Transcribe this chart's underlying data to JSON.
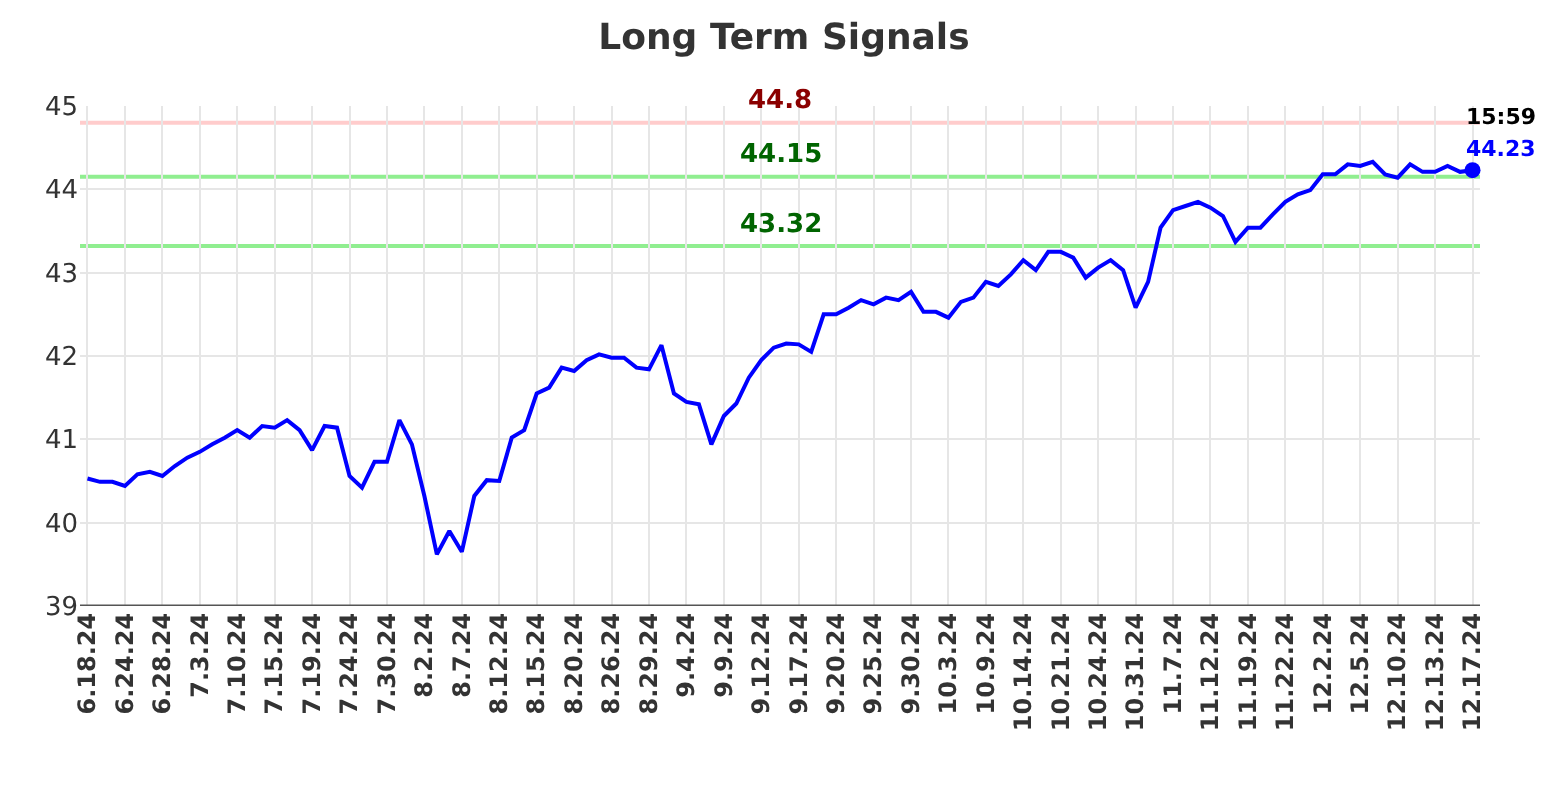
{
  "chart_data": {
    "type": "line",
    "title": "Long Term Signals",
    "categories": [
      "6.18.24",
      null,
      null,
      "6.24.24",
      null,
      null,
      "6.28.24",
      null,
      null,
      "7.3.24",
      null,
      null,
      "7.10.24",
      null,
      null,
      "7.15.24",
      null,
      null,
      "7.19.24",
      null,
      null,
      "7.24.24",
      null,
      null,
      "7.30.24",
      null,
      null,
      "8.2.24",
      null,
      null,
      "8.7.24",
      null,
      null,
      "8.12.24",
      null,
      null,
      "8.15.24",
      null,
      null,
      "8.20.24",
      null,
      null,
      "8.26.24",
      null,
      null,
      "8.29.24",
      null,
      null,
      "9.4.24",
      null,
      null,
      "9.9.24",
      null,
      null,
      "9.12.24",
      null,
      null,
      "9.17.24",
      null,
      null,
      "9.20.24",
      null,
      null,
      "9.25.24",
      null,
      null,
      "9.30.24",
      null,
      null,
      "10.3.24",
      null,
      null,
      "10.9.24",
      null,
      null,
      "10.14.24",
      null,
      null,
      "10.21.24",
      null,
      null,
      "10.24.24",
      null,
      null,
      "10.31.24",
      null,
      null,
      "11.7.24",
      null,
      null,
      "11.12.24",
      null,
      null,
      "11.19.24",
      null,
      null,
      "11.22.24",
      null,
      null,
      "12.2.24",
      null,
      null,
      "12.5.24",
      null,
      null,
      "12.10.24",
      null,
      null,
      "12.13.24",
      null,
      null,
      "12.17.24"
    ],
    "series": [
      {
        "color": "#0000ff",
        "values": [
          40.53,
          40.49,
          40.49,
          40.44,
          40.58,
          40.61,
          40.56,
          40.68,
          40.78,
          40.85,
          40.94,
          41.02,
          41.11,
          41.02,
          41.16,
          41.14,
          41.23,
          41.11,
          40.87,
          41.16,
          41.14,
          40.56,
          40.42,
          40.73,
          40.73,
          41.23,
          40.94,
          40.32,
          39.62,
          39.9,
          39.65,
          40.32,
          40.51,
          40.5,
          41.02,
          41.11,
          41.55,
          41.62,
          41.86,
          41.82,
          41.95,
          42.02,
          41.98,
          41.98,
          41.86,
          41.84,
          42.13,
          41.55,
          41.45,
          41.42,
          40.94,
          41.28,
          41.43,
          41.74,
          41.95,
          42.1,
          42.15,
          42.14,
          42.05,
          42.5,
          42.5,
          42.58,
          42.67,
          42.62,
          42.7,
          42.67,
          42.77,
          42.53,
          42.53,
          42.46,
          42.65,
          42.7,
          42.89,
          42.84,
          42.98,
          43.15,
          43.03,
          43.25,
          43.25,
          43.18,
          42.94,
          43.06,
          43.15,
          43.03,
          42.58,
          42.89,
          43.54,
          43.75,
          43.8,
          43.85,
          43.78,
          43.68,
          43.37,
          43.54,
          43.54,
          43.7,
          43.85,
          43.94,
          43.99,
          44.18,
          44.18,
          44.3,
          44.28,
          44.33,
          44.18,
          44.14,
          44.3,
          44.21,
          44.21,
          44.28,
          44.21,
          44.23
        ]
      },
      {
        "type": "scatter",
        "color": "#0000ff",
        "marker": "circle",
        "x": [
          "12.17.24"
        ],
        "values": [
          44.23
        ]
      }
    ],
    "ylim": [
      39,
      45
    ],
    "yticks": [
      39,
      40,
      41,
      42,
      43,
      44,
      45
    ],
    "grid": true,
    "ref_lines": [
      {
        "axis": "y",
        "value": 44.8,
        "label": "44.8",
        "color": "#ffcccc"
      },
      {
        "axis": "y",
        "value": 44.15,
        "label": "44.15",
        "color": "#90ee90"
      },
      {
        "axis": "y",
        "value": 43.32,
        "label": "43.32",
        "color": "#90ee90"
      }
    ],
    "annotations": [
      {
        "text": "15:59",
        "x": "12.17.24",
        "y": 44.23
      },
      {
        "text": "44.23",
        "x": "12.17.24",
        "y": 44.23
      }
    ]
  }
}
